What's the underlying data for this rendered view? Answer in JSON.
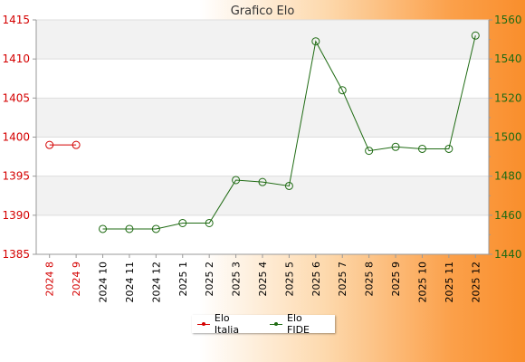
{
  "chart_data": {
    "type": "line",
    "title": "Grafico Elo",
    "categories": [
      "2024 8",
      "2024 9",
      "2024 10",
      "2024 11",
      "2024 12",
      "2025 1",
      "2025 2",
      "2025 3",
      "2025 4",
      "2025 5",
      "2025 6",
      "2025 7",
      "2025 8",
      "2025 9",
      "2025 10",
      "2025 11",
      "2025 12"
    ],
    "y_left": {
      "ylim": [
        1385,
        1415
      ],
      "ticks": [
        1385,
        1390,
        1395,
        1400,
        1405,
        1410,
        1415
      ],
      "color": "#d40000"
    },
    "y_right": {
      "ylim": [
        1440,
        1560
      ],
      "ticks": [
        1440,
        1460,
        1480,
        1500,
        1520,
        1540,
        1560
      ],
      "color": "#1f6b13"
    },
    "series": [
      {
        "name": "Elo Italia",
        "axis": "left",
        "color": "#d40000",
        "values": [
          1399,
          1399,
          null,
          null,
          null,
          null,
          null,
          null,
          null,
          null,
          null,
          null,
          null,
          null,
          null,
          null,
          null
        ]
      },
      {
        "name": "Elo FIDE",
        "axis": "right",
        "color": "#1f6b13",
        "values": [
          null,
          null,
          1453,
          1453,
          1453,
          1456,
          1456,
          1478,
          1477,
          1475,
          1549,
          1524,
          1493,
          1495,
          1494,
          1494,
          1552
        ]
      }
    ],
    "grid": "horizontal bands",
    "legend_position": "bottom"
  }
}
